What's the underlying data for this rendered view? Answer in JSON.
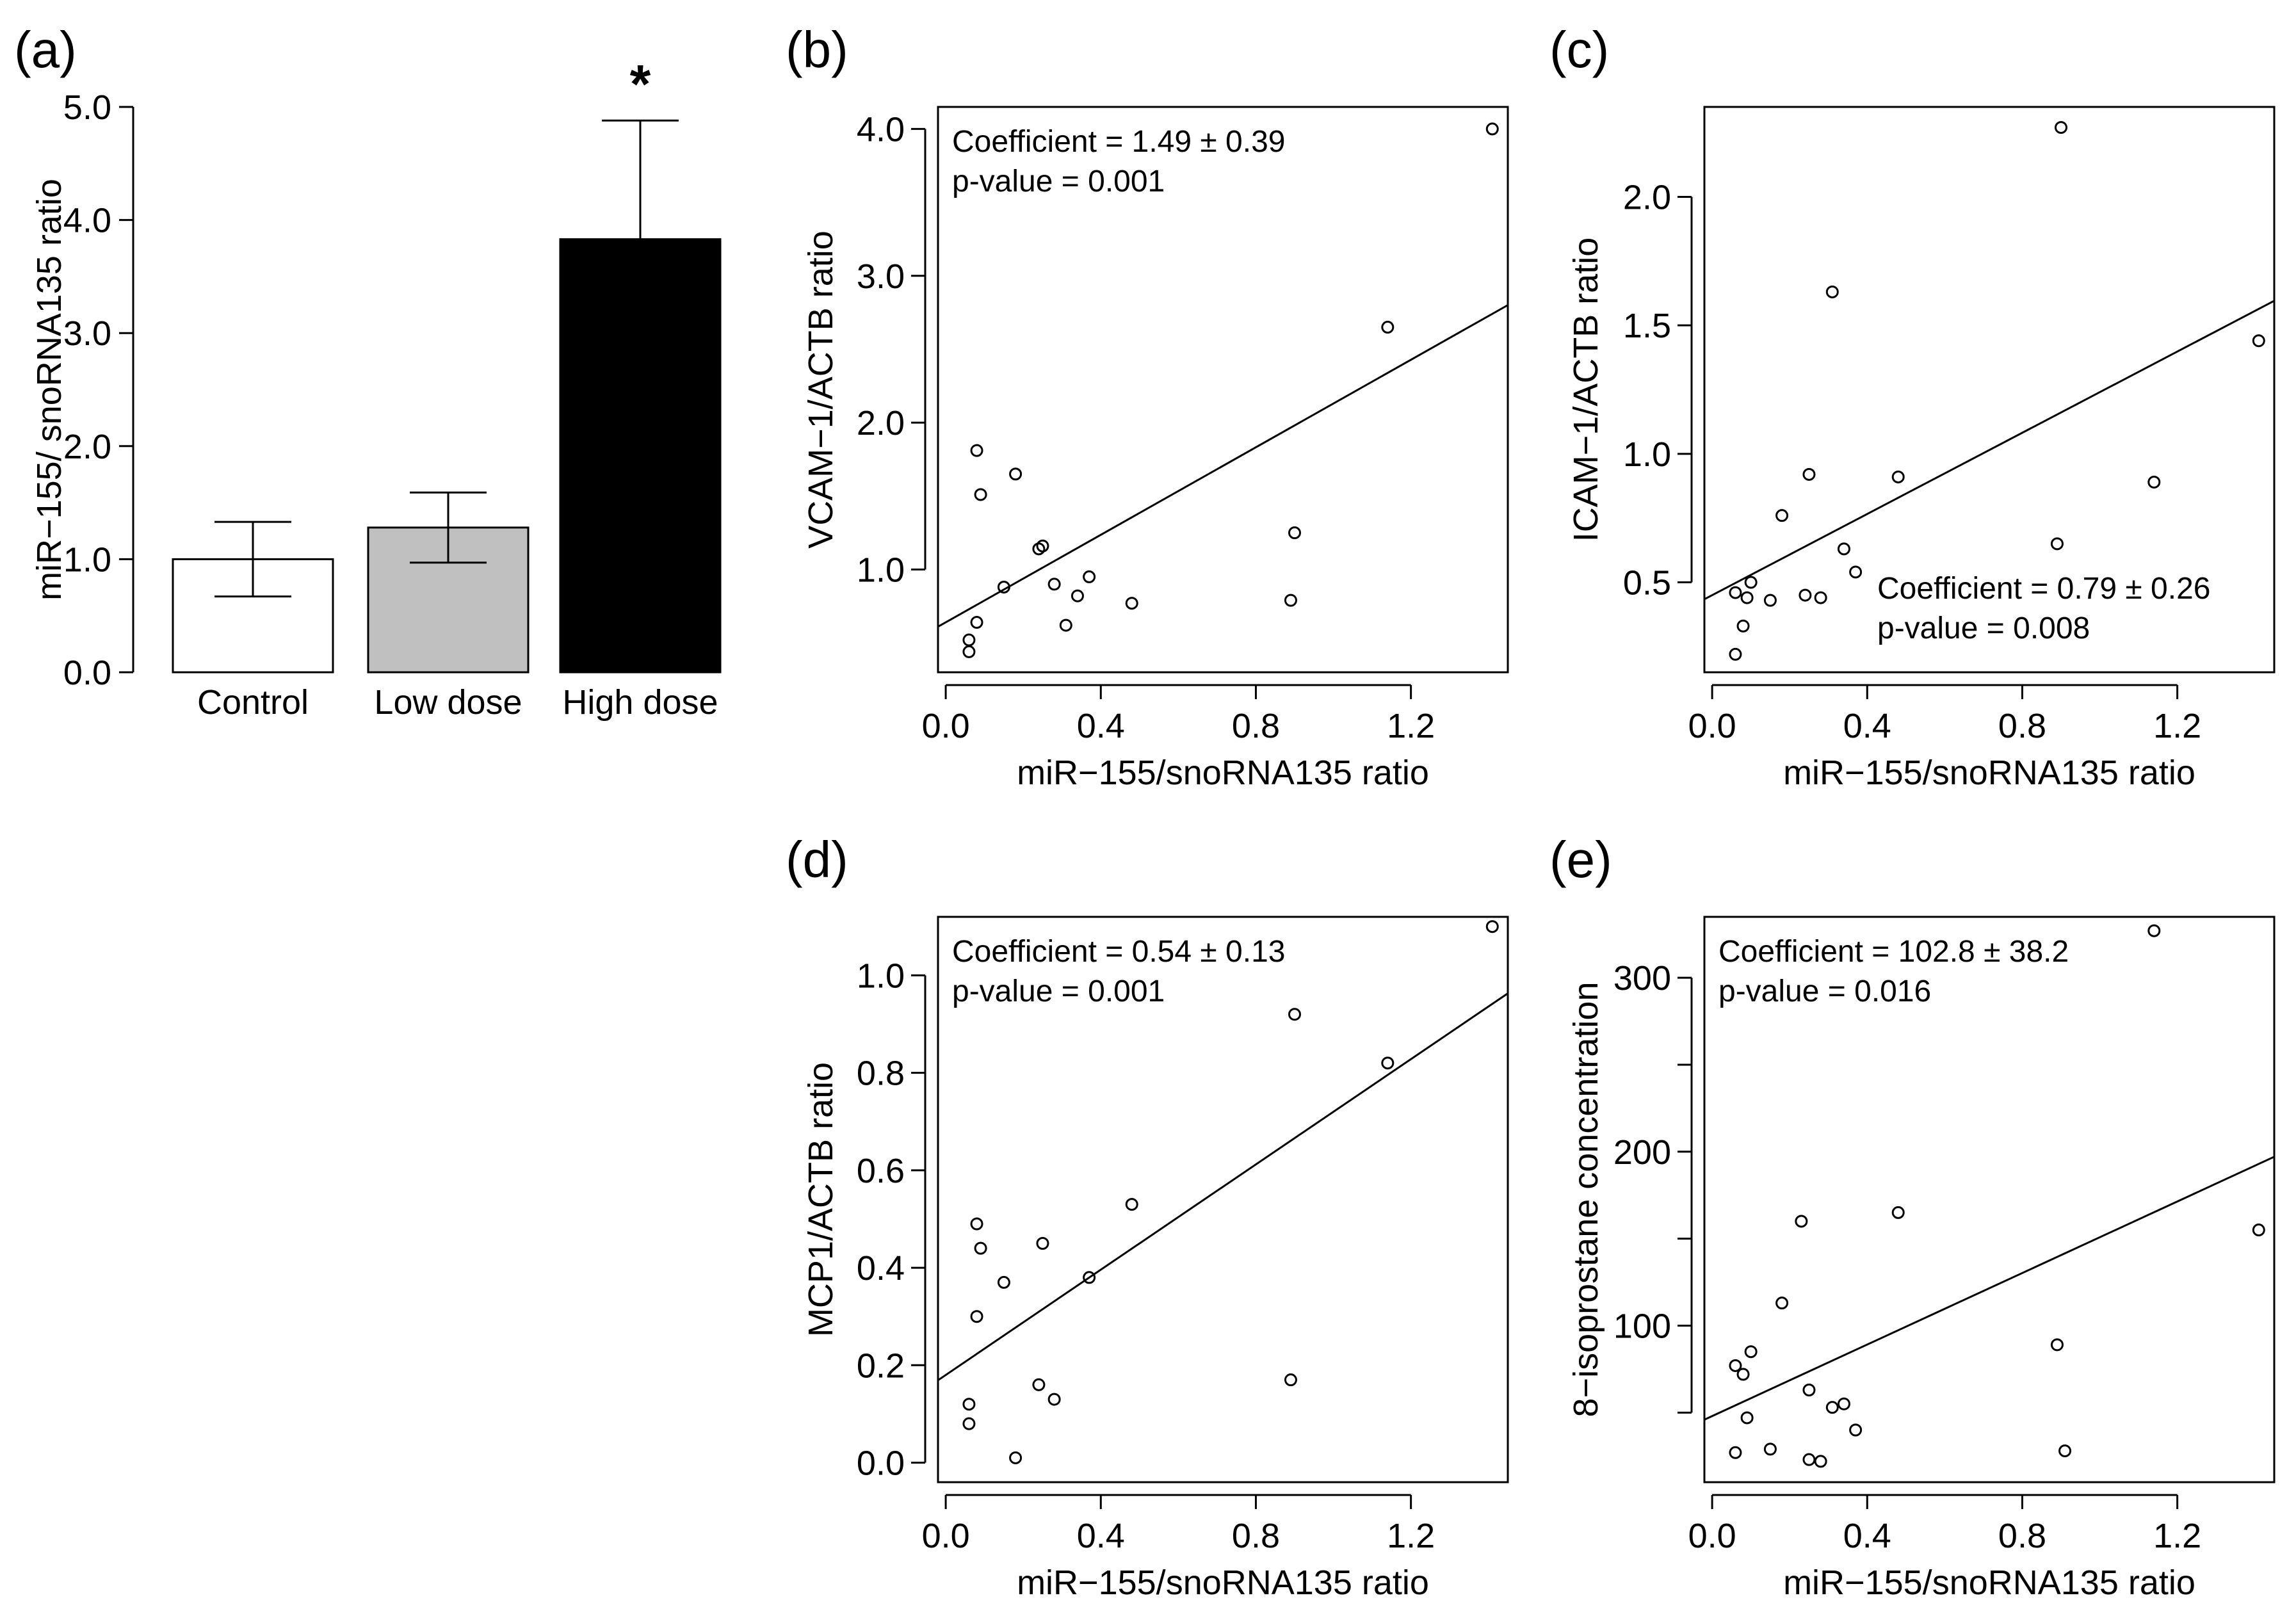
{
  "chart_data": [
    {
      "panel": "(a)",
      "type": "bar",
      "categories": [
        "Control",
        "Low dose",
        "High dose"
      ],
      "values": [
        1.0,
        1.28,
        3.83
      ],
      "errors": [
        0.33,
        0.31,
        1.05
      ],
      "colors": [
        "#ffffff",
        "#c0c0c0",
        "#000000"
      ],
      "ylabel": "miR−155/ snoRNA135 ratio",
      "ylim": [
        0,
        5
      ],
      "yticks": [
        0,
        1,
        2,
        3,
        4,
        5
      ],
      "ytick_labels": [
        "0.0",
        "1.0",
        "2.0",
        "3.0",
        "4.0",
        "5.0"
      ],
      "annotation": "*",
      "annotation_category": "High dose"
    },
    {
      "panel": "(b)",
      "type": "scatter",
      "xlabel": "miR−155/snoRNA135 ratio",
      "ylabel": "VCAM−1/ACTB ratio",
      "xlim": [
        -0.02,
        1.45
      ],
      "ylim": [
        0.3,
        4.15
      ],
      "xticks": [
        0,
        0.4,
        0.8,
        1.2
      ],
      "xtick_labels": [
        "0.0",
        "0.4",
        "0.8",
        "1.2"
      ],
      "yticks": [
        1,
        2,
        3,
        4
      ],
      "ytick_labels": [
        "1.0",
        "2.0",
        "3.0",
        "4.0"
      ],
      "x": [
        0.06,
        0.06,
        0.08,
        0.08,
        0.09,
        0.15,
        0.18,
        0.24,
        0.25,
        0.28,
        0.31,
        0.34,
        0.37,
        0.48,
        0.89,
        0.9,
        1.14,
        1.41
      ],
      "y": [
        0.52,
        0.44,
        0.64,
        1.81,
        1.51,
        0.88,
        1.65,
        1.14,
        1.16,
        0.9,
        0.62,
        0.82,
        0.95,
        0.77,
        0.79,
        1.25,
        2.65,
        4.0
      ],
      "fit": {
        "intercept": 0.64,
        "slope": 1.49
      },
      "annotation_lines": [
        "Coefficient = 1.49 ± 0.39",
        "p-value = 0.001"
      ],
      "annotation_position": "top-left"
    },
    {
      "panel": "(c)",
      "type": "scatter",
      "xlabel": "miR−155/snoRNA135 ratio",
      "ylabel": "ICAM−1/ACTB ratio",
      "xlim": [
        -0.02,
        1.45
      ],
      "ylim": [
        0.15,
        2.35
      ],
      "xticks": [
        0,
        0.4,
        0.8,
        1.2
      ],
      "xtick_labels": [
        "0.0",
        "0.4",
        "0.8",
        "1.2"
      ],
      "yticks": [
        0.5,
        1,
        1.5,
        2
      ],
      "ytick_labels": [
        "0.5",
        "1.0",
        "1.5",
        "2.0"
      ],
      "x": [
        0.06,
        0.06,
        0.08,
        0.09,
        0.1,
        0.15,
        0.18,
        0.24,
        0.25,
        0.28,
        0.31,
        0.34,
        0.37,
        0.48,
        0.89,
        0.9,
        1.14,
        1.41
      ],
      "y": [
        0.22,
        0.46,
        0.33,
        0.44,
        0.5,
        0.43,
        0.76,
        0.45,
        0.92,
        0.44,
        1.63,
        0.63,
        0.54,
        0.91,
        0.65,
        2.27,
        0.89,
        1.44
      ],
      "fit": {
        "intercept": 0.45,
        "slope": 0.79
      },
      "annotation_lines": [
        "Coefficient = 0.79 ± 0.26",
        "p-value = 0.008"
      ],
      "annotation_position": "bottom-right"
    },
    {
      "panel": "(d)",
      "type": "scatter",
      "xlabel": "miR−155/snoRNA135 ratio",
      "ylabel": "MCP1/ACTB ratio",
      "xlim": [
        -0.02,
        1.45
      ],
      "ylim": [
        -0.04,
        1.12
      ],
      "xticks": [
        0,
        0.4,
        0.8,
        1.2
      ],
      "xtick_labels": [
        "0.0",
        "0.4",
        "0.8",
        "1.2"
      ],
      "yticks": [
        0,
        0.2,
        0.4,
        0.6,
        0.8,
        1.0
      ],
      "ytick_labels": [
        "0.0",
        "0.2",
        "0.4",
        "0.6",
        "0.8",
        "1.0"
      ],
      "x": [
        0.06,
        0.06,
        0.08,
        0.08,
        0.09,
        0.15,
        0.18,
        0.24,
        0.25,
        0.28,
        0.37,
        0.48,
        0.89,
        0.9,
        1.14,
        1.41
      ],
      "y": [
        0.12,
        0.08,
        0.3,
        0.49,
        0.44,
        0.37,
        0.01,
        0.16,
        0.45,
        0.13,
        0.38,
        0.53,
        0.17,
        0.92,
        0.82,
        1.1
      ],
      "fit": {
        "intercept": 0.18,
        "slope": 0.54
      },
      "annotation_lines": [
        "Coefficient = 0.54 ± 0.13",
        "p-value = 0.001"
      ],
      "annotation_position": "top-left"
    },
    {
      "panel": "(e)",
      "type": "scatter",
      "xlabel": "miR−155/snoRNA135 ratio",
      "ylabel": "8−isoprostane concentration",
      "xlim": [
        -0.02,
        1.45
      ],
      "ylim": [
        10,
        335
      ],
      "xticks": [
        0,
        0.4,
        0.8,
        1.2
      ],
      "xtick_labels": [
        "0.0",
        "0.4",
        "0.8",
        "1.2"
      ],
      "yticks": [
        100,
        200,
        300
      ],
      "ytick_labels": [
        "100",
        "200",
        "300"
      ],
      "minor_yticks": [
        50,
        150,
        250
      ],
      "x": [
        0.06,
        0.06,
        0.08,
        0.09,
        0.1,
        0.15,
        0.18,
        0.23,
        0.25,
        0.25,
        0.28,
        0.31,
        0.34,
        0.37,
        0.48,
        0.89,
        0.91,
        1.14,
        1.41
      ],
      "y": [
        77,
        27,
        72,
        47,
        85,
        29,
        113,
        160,
        23,
        63,
        22,
        53,
        55,
        40,
        165,
        89,
        28,
        327,
        155
      ],
      "fit": {
        "intercept": 48,
        "slope": 102.8
      },
      "annotation_lines": [
        "Coefficient = 102.8 ± 38.2",
        "p-value = 0.016"
      ],
      "annotation_position": "top-left"
    }
  ]
}
